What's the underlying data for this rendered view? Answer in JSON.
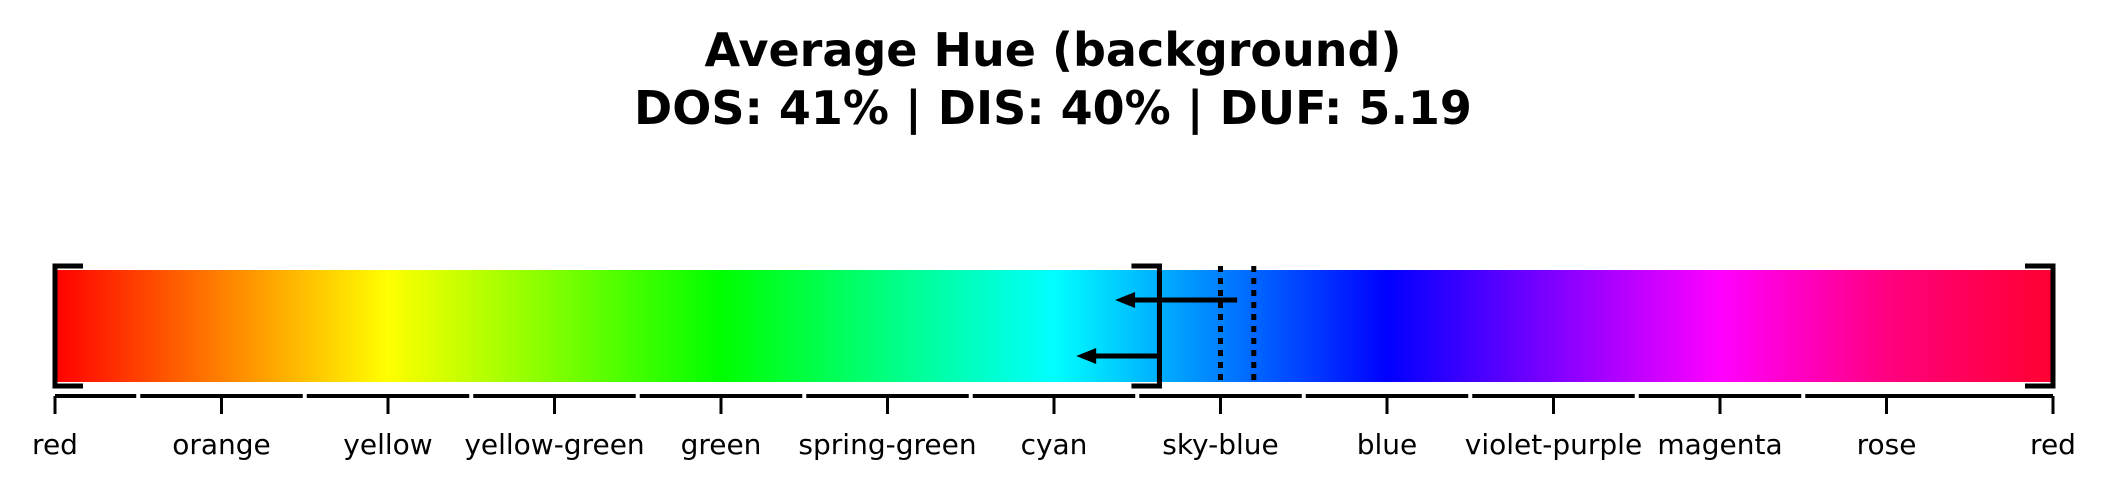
{
  "chart_data": {
    "type": "hue-bar",
    "title": "Average Hue (background)",
    "subtitle": "DOS: 41% | DIS: 40% | DUF: 5.19",
    "xlim": [
      0,
      360
    ],
    "ticks": [
      {
        "label": "red",
        "value": 0
      },
      {
        "label": "orange",
        "value": 30
      },
      {
        "label": "yellow",
        "value": 60
      },
      {
        "label": "yellow-green",
        "value": 90
      },
      {
        "label": "green",
        "value": 120
      },
      {
        "label": "spring-green",
        "value": 150
      },
      {
        "label": "cyan",
        "value": 180
      },
      {
        "label": "sky-blue",
        "value": 210
      },
      {
        "label": "blue",
        "value": 240
      },
      {
        "label": "violet-purple",
        "value": 270
      },
      {
        "label": "magenta",
        "value": 300
      },
      {
        "label": "rose",
        "value": 330
      },
      {
        "label": "red",
        "value": 360
      }
    ],
    "range_brackets": [
      0,
      199,
      360
    ],
    "dotted_markers": [
      210,
      216
    ],
    "arrows": [
      {
        "from": 213,
        "to": 191,
        "level": "upper"
      },
      {
        "from": 199,
        "to": 184,
        "level": "lower"
      }
    ],
    "gradient_stops": [
      {
        "value": 0,
        "color": "#ff0000"
      },
      {
        "value": 30,
        "color": "#ff8000"
      },
      {
        "value": 60,
        "color": "#ffff00"
      },
      {
        "value": 90,
        "color": "#80ff00"
      },
      {
        "value": 120,
        "color": "#00ff00"
      },
      {
        "value": 150,
        "color": "#00ff80"
      },
      {
        "value": 180,
        "color": "#00ffff"
      },
      {
        "value": 210,
        "color": "#0080ff"
      },
      {
        "value": 240,
        "color": "#0000ff"
      },
      {
        "value": 270,
        "color": "#8000ff"
      },
      {
        "value": 300,
        "color": "#ff00ff"
      },
      {
        "value": 330,
        "color": "#ff0080"
      },
      {
        "value": 360,
        "color": "#ff0030"
      }
    ]
  }
}
